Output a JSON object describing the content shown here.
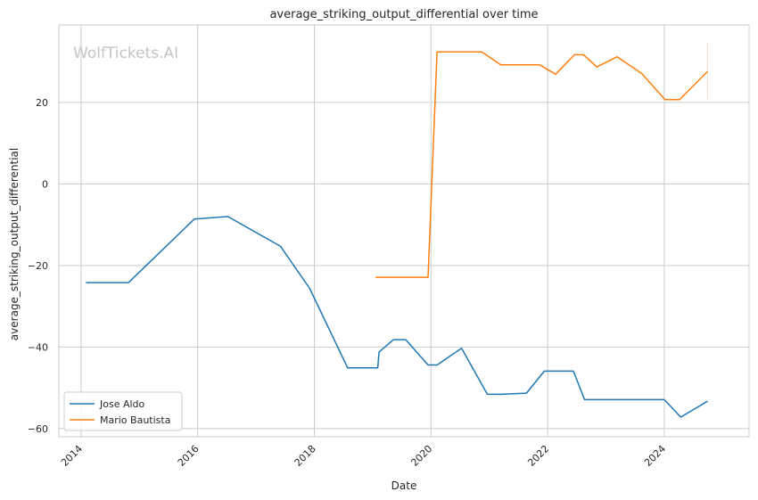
{
  "chart_data": {
    "type": "line",
    "title": "average_striking_output_differential over time",
    "xlabel": "Date",
    "ylabel": "average_striking_output_differential",
    "watermark": "WolfTickets.AI",
    "xlim": [
      "2013-08-15",
      "2025-06-15"
    ],
    "ylim": [
      -62,
      39
    ],
    "x_ticks": [
      "2014-01-01",
      "2016-01-01",
      "2018-01-01",
      "2020-01-01",
      "2022-01-01",
      "2024-01-01"
    ],
    "x_tick_labels": [
      "2014",
      "2016",
      "2018",
      "2020",
      "2022",
      "2024"
    ],
    "y_ticks": [
      -60,
      -40,
      -20,
      0,
      20
    ],
    "y_tick_labels": [
      "−60",
      "−40",
      "−20",
      "0",
      "20"
    ],
    "grid": true,
    "legend_position": "lower-left",
    "series": [
      {
        "name": "Jose Aldo",
        "color": "#1f77b4",
        "points": [
          [
            "2014-02-01",
            -24.2
          ],
          [
            "2014-10-25",
            -24.2
          ],
          [
            "2015-12-12",
            -8.6
          ],
          [
            "2016-07-09",
            -8.0
          ],
          [
            "2017-06-03",
            -15.3
          ],
          [
            "2017-12-02",
            -25.6
          ],
          [
            "2018-07-28",
            -45.1
          ],
          [
            "2019-02-02",
            -45.1
          ],
          [
            "2019-02-10",
            -41.2
          ],
          [
            "2019-05-11",
            -38.2
          ],
          [
            "2019-07-27",
            -38.2
          ],
          [
            "2019-12-14",
            -44.4
          ],
          [
            "2020-02-08",
            -44.4
          ],
          [
            "2020-07-11",
            -40.3
          ],
          [
            "2020-12-19",
            -51.6
          ],
          [
            "2021-03-13",
            -51.6
          ],
          [
            "2021-08-21",
            -51.3
          ],
          [
            "2021-12-11",
            -45.9
          ],
          [
            "2022-06-11",
            -45.9
          ],
          [
            "2022-08-20",
            -52.9
          ],
          [
            "2024-01-01",
            -52.9
          ],
          [
            "2024-04-13",
            -57.2
          ],
          [
            "2024-09-28",
            -53.3
          ]
        ]
      },
      {
        "name": "Mario Bautista",
        "color": "#ff7f0e",
        "points": [
          [
            "2019-01-19",
            -22.9
          ],
          [
            "2019-12-14",
            -22.9
          ],
          [
            "2020-02-08",
            32.4
          ],
          [
            "2020-11-14",
            32.4
          ],
          [
            "2021-03-13",
            29.2
          ],
          [
            "2021-11-13",
            29.2
          ],
          [
            "2022-02-19",
            26.9
          ],
          [
            "2022-06-18",
            31.7
          ],
          [
            "2022-08-13",
            31.7
          ],
          [
            "2022-11-05",
            28.7
          ],
          [
            "2023-03-11",
            31.2
          ],
          [
            "2023-08-12",
            27.1
          ],
          [
            "2024-01-06",
            20.7
          ],
          [
            "2024-04-06",
            20.7
          ],
          [
            "2024-09-28",
            27.6
          ]
        ],
        "error_bar": {
          "x": "2024-09-28",
          "low": 20.7,
          "high": 34.6
        }
      }
    ]
  }
}
